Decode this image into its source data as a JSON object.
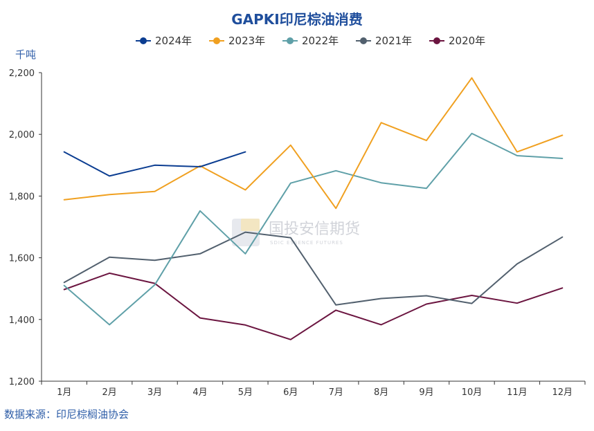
{
  "chart_data": {
    "type": "line",
    "title": "GAPKI印尼棕油消费",
    "ylabel": "千吨",
    "ylim": [
      1200,
      2200
    ],
    "yticks": [
      1200,
      1400,
      1600,
      1800,
      2000,
      2200
    ],
    "ytick_labels": [
      "1,200",
      "1,400",
      "1,600",
      "1,800",
      "2,000",
      "2,200"
    ],
    "categories": [
      "1月",
      "2月",
      "3月",
      "4月",
      "5月",
      "6月",
      "7月",
      "8月",
      "9月",
      "10月",
      "11月",
      "12月"
    ],
    "legend_position": "top",
    "grid": false,
    "series": [
      {
        "name": "2024年",
        "color": "#0b3d91",
        "values": [
          1943,
          1865,
          1900,
          1895,
          1943,
          null,
          null,
          null,
          null,
          null,
          null,
          null
        ]
      },
      {
        "name": "2023年",
        "color": "#f0a020",
        "values": [
          1788,
          1805,
          1815,
          1898,
          1820,
          1965,
          1760,
          2038,
          1980,
          2183,
          1943,
          1997
        ]
      },
      {
        "name": "2022年",
        "color": "#5fa0a8",
        "values": [
          1510,
          1383,
          1512,
          1752,
          1613,
          1842,
          1882,
          1843,
          1825,
          2003,
          1931,
          1922
        ]
      },
      {
        "name": "2021年",
        "color": "#52606e",
        "values": [
          1520,
          1602,
          1592,
          1613,
          1683,
          1665,
          1447,
          1468,
          1477,
          1452,
          1580,
          1667
        ]
      },
      {
        "name": "2020年",
        "color": "#6b1540",
        "values": [
          1497,
          1550,
          1517,
          1405,
          1382,
          1335,
          1430,
          1383,
          1450,
          1478,
          1453,
          1502
        ]
      }
    ]
  },
  "watermark": {
    "text": "国投安信期货",
    "subtext": "SDIC ESSENCE FUTURES"
  },
  "source": "数据来源：印尼棕榈油协会"
}
